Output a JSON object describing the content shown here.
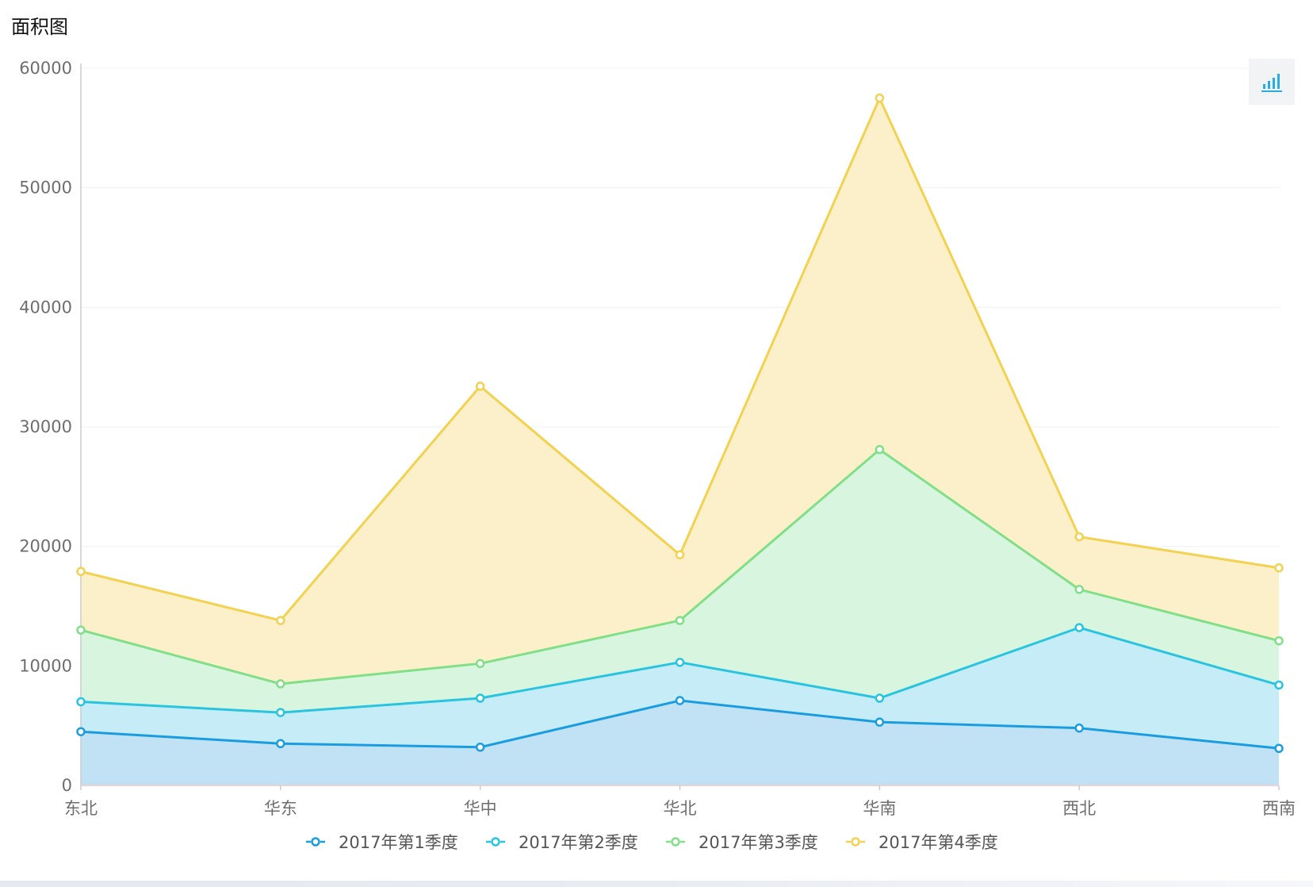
{
  "chart_title": "面积图",
  "toolbar": {
    "chart_type_icon": "bar-chart-icon"
  },
  "chart_data": {
    "type": "area",
    "stacked": true,
    "title": "面积图",
    "categories": [
      "东北",
      "华东",
      "华中",
      "华北",
      "华南",
      "西北",
      "西南"
    ],
    "ylim": [
      0,
      60000
    ],
    "yticks": [
      "0",
      "10000",
      "20000",
      "30000",
      "40000",
      "50000",
      "60000"
    ],
    "grid": true,
    "legend_position": "bottom",
    "series": [
      {
        "name": "2017年第1季度",
        "color": "#1a9de0",
        "fill": "#c1e1f4",
        "values": [
          4500,
          3500,
          3200,
          7100,
          5300,
          4800,
          3100
        ]
      },
      {
        "name": "2017年第2季度",
        "color": "#29c4e0",
        "fill": "#c6ecf8",
        "values": [
          2500,
          2600,
          4100,
          3200,
          2000,
          8400,
          5300
        ]
      },
      {
        "name": "2017年第3季度",
        "color": "#81df88",
        "fill": "#d7f5df",
        "values": [
          6000,
          2400,
          2900,
          3500,
          20800,
          3200,
          3700
        ]
      },
      {
        "name": "2017年第4季度",
        "color": "#f2d250",
        "fill": "#fbf0c9",
        "values": [
          4900,
          5300,
          23200,
          5500,
          29400,
          4400,
          6100
        ]
      }
    ]
  }
}
